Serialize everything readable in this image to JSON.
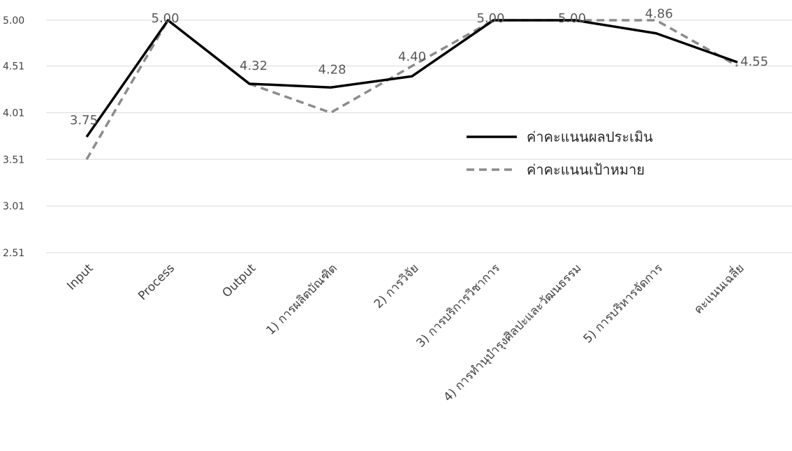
{
  "chart_data": {
    "type": "line",
    "categories": [
      "Input",
      "Process",
      "Output",
      "1) การผลิตบัณฑิต",
      "2) การวิจัย",
      "3) การบริการวิชาการ",
      "4) การทำนุบำรุงศิลปะและวัฒนธรรม",
      "5) การบริหารจัดการ",
      "คะแนนเฉลี่ย"
    ],
    "yticks": [
      "5.00",
      "4.51",
      "4.01",
      "3.51",
      "3.01",
      "2.51"
    ],
    "ylim": [
      2.51,
      5.0
    ],
    "grid": true,
    "legend_position": "right",
    "series": [
      {
        "name": "ค่าคะแนนผลประเมิน",
        "values": [
          3.75,
          5.0,
          4.32,
          4.28,
          4.4,
          5.0,
          5.0,
          4.86,
          4.55
        ],
        "labels": [
          "3.75",
          "5.00",
          "4.32",
          "4.28",
          "4.40",
          "5.00",
          "5.00",
          "4.86",
          "4.55"
        ],
        "color": "#000000",
        "style": "solid"
      },
      {
        "name": "ค่าคะแนนเป้าหมาย",
        "values": [
          3.51,
          5.0,
          4.32,
          4.01,
          4.51,
          5.0,
          5.0,
          5.0,
          4.51
        ],
        "color": "#8c8c8c",
        "style": "dashed"
      }
    ]
  }
}
